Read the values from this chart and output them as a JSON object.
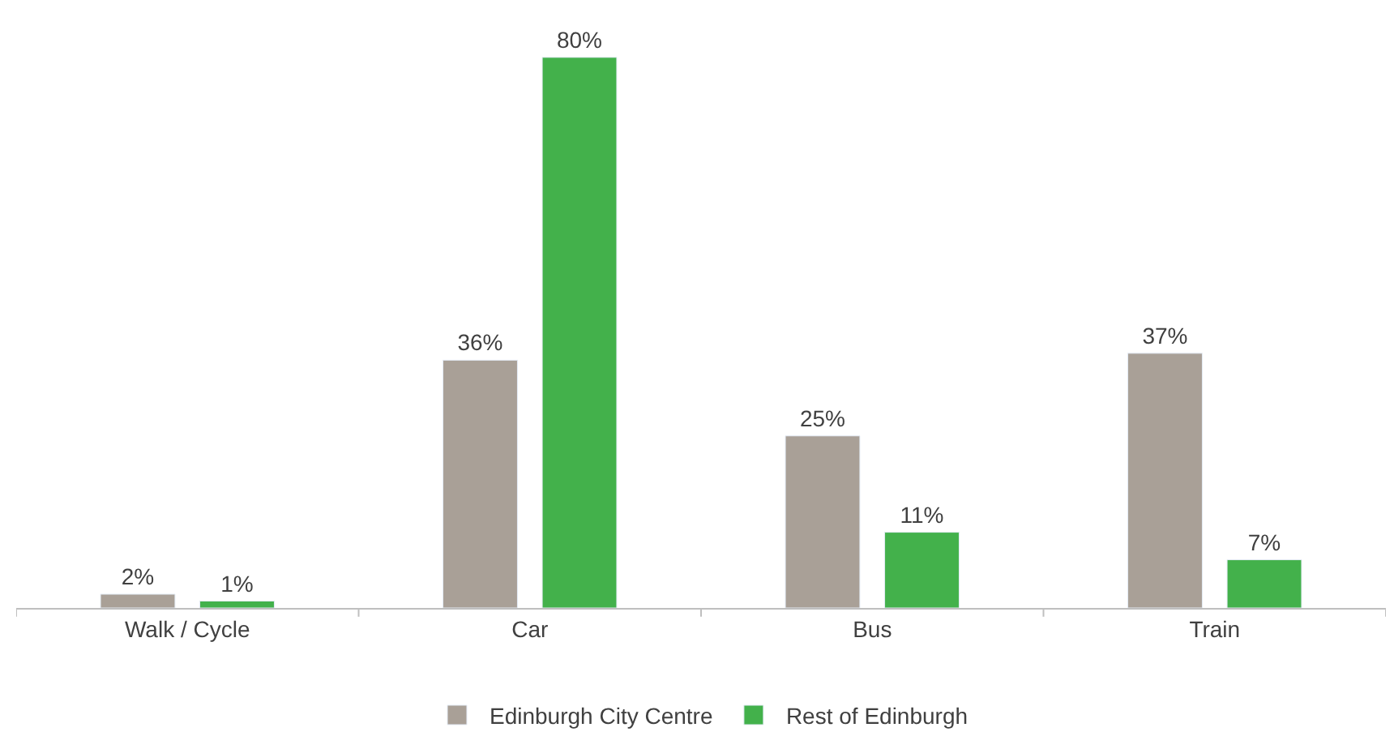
{
  "chart_data": {
    "type": "bar",
    "categories": [
      "Walk / Cycle",
      "Car",
      "Bus",
      "Train"
    ],
    "series": [
      {
        "name": "Edinburgh City Centre",
        "color": "#a9a097",
        "values": [
          2,
          36,
          25,
          37
        ],
        "value_labels": [
          "2%",
          "36%",
          "25%",
          "37%"
        ]
      },
      {
        "name": "Rest of Edinburgh",
        "color": "#43b14b",
        "values": [
          1,
          80,
          11,
          7
        ],
        "value_labels": [
          "1%",
          "80%",
          "11%",
          "7%"
        ]
      }
    ],
    "legend": "bottom",
    "tick_labels": "x"
  }
}
